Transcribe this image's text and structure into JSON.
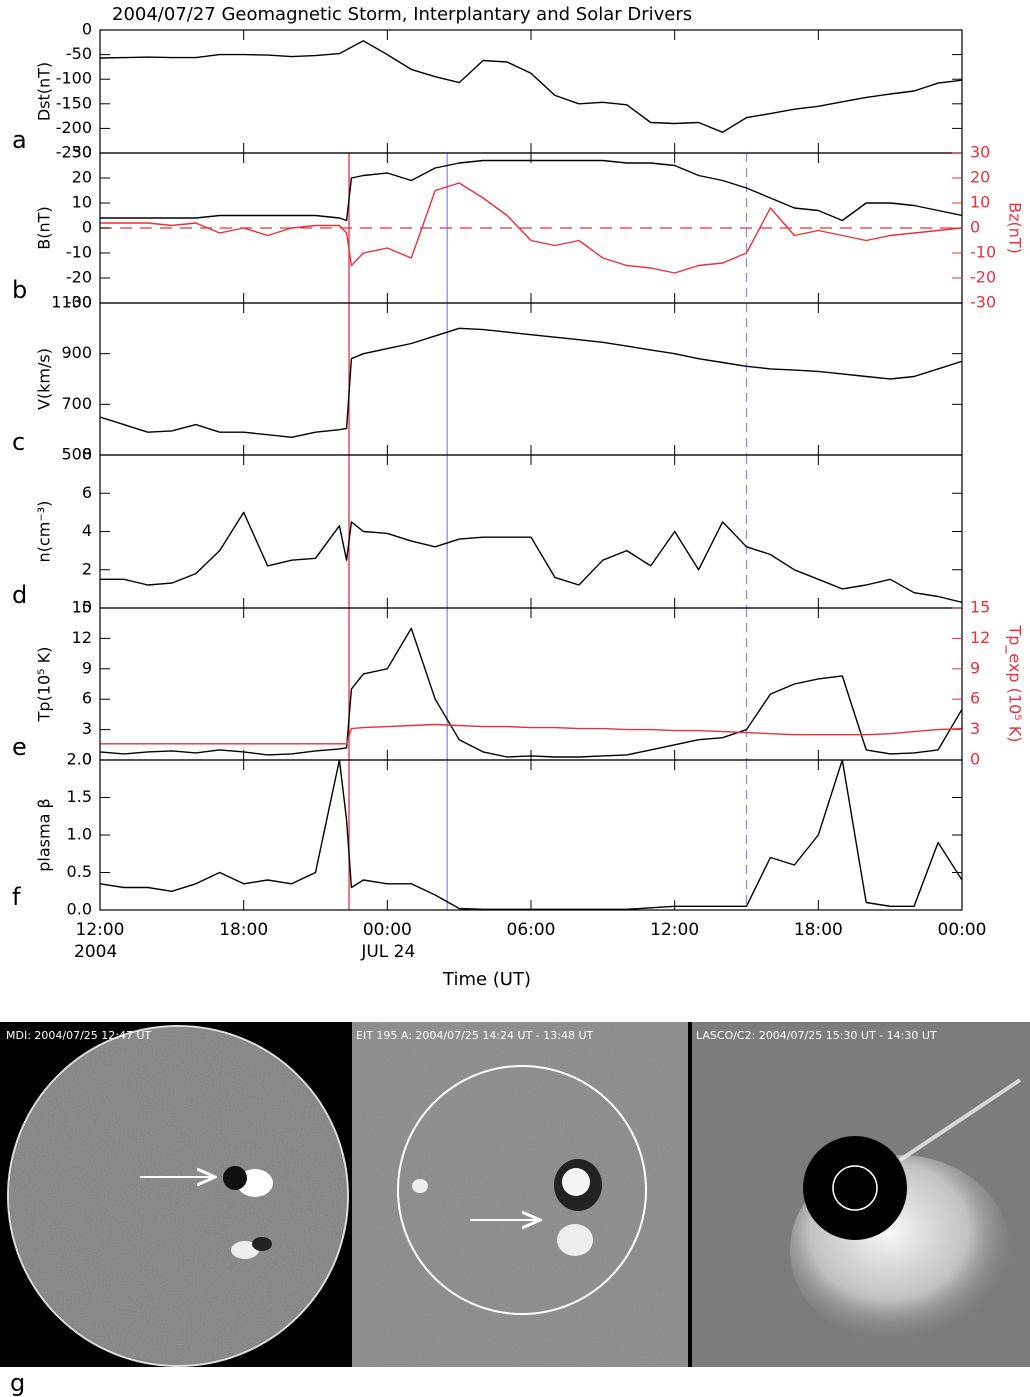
{
  "title": "2004/07/27 Geomagnetic Storm, Interplantary and Solar Drivers",
  "xlabel": "Time (UT)",
  "markers": [
    {
      "x": 10.4,
      "color": "#e8303a",
      "dash": false
    },
    {
      "x": 14.5,
      "color": "#8c8cf0",
      "dash": false
    },
    {
      "x": 27.0,
      "color": "#8c8cf0",
      "dash": true
    }
  ],
  "chart_data": [
    {
      "type": "line",
      "panel": "a",
      "ylabel": "Dst(nT)",
      "color": "#000000",
      "xlim": [
        0,
        36
      ],
      "ylim": [
        -250,
        0
      ],
      "yticks": [
        -250,
        -200,
        -150,
        -100,
        -50,
        0
      ],
      "x": [
        0,
        1,
        2,
        3,
        4,
        5,
        6,
        7,
        8,
        9,
        10,
        11,
        12,
        13,
        14,
        15,
        16,
        17,
        18,
        19,
        20,
        21,
        22,
        23,
        24,
        25,
        26,
        27,
        28,
        29,
        30,
        31,
        32,
        33,
        34,
        35,
        36
      ],
      "values": [
        -57,
        -56,
        -55,
        -56,
        -56,
        -50,
        -50,
        -51,
        -54,
        -52,
        -48,
        -22,
        -50,
        -80,
        -95,
        -107,
        -62,
        -65,
        -88,
        -133,
        -150,
        -147,
        -152,
        -188,
        -190,
        -188,
        -208,
        -178,
        -170,
        -161,
        -155,
        -146,
        -137,
        -130,
        -124,
        -108,
        -102
      ]
    },
    {
      "type": "line",
      "panel": "b",
      "ylabel": "B(nT)",
      "y2label": "Bz(nT)",
      "show_markers": true,
      "xlim": [
        0,
        36
      ],
      "ylim": [
        -30,
        30
      ],
      "yticks": [
        -30,
        -20,
        -10,
        0,
        10,
        20,
        30
      ],
      "y2lim": [
        -30,
        30
      ],
      "y2ticks": [
        -30,
        -20,
        -10,
        0,
        10,
        20,
        30
      ],
      "hline": {
        "value": 0,
        "color": "#e8303a",
        "dash": true
      },
      "x": [
        0,
        1,
        2,
        3,
        4,
        5,
        6,
        7,
        8,
        9,
        10,
        10.3,
        10.5,
        11,
        12,
        13,
        14,
        15,
        16,
        17,
        18,
        19,
        20,
        21,
        22,
        23,
        24,
        25,
        26,
        27,
        28,
        29,
        30,
        31,
        32,
        33,
        34,
        35,
        36
      ],
      "series": [
        {
          "color": "#000000",
          "values": [
            4,
            4,
            4,
            4,
            4,
            5,
            5,
            5,
            5,
            5,
            4,
            3,
            20,
            21,
            22,
            19,
            24,
            26,
            27,
            27,
            27,
            27,
            27,
            27,
            26,
            26,
            25,
            21,
            19,
            16,
            12,
            8,
            7,
            3,
            10,
            10,
            9,
            7,
            5
          ]
        },
        {
          "color": "#e8303a",
          "axis": "y2",
          "values": [
            2,
            2,
            2,
            1,
            2,
            -2,
            0,
            -3,
            0,
            1,
            1,
            -2,
            -15,
            -10,
            -8,
            -12,
            15,
            18,
            12,
            5,
            -5,
            -7,
            -5,
            -12,
            -15,
            -16,
            -18,
            -15,
            -14,
            -10,
            8,
            -3,
            -1,
            -3,
            -5,
            -3,
            -2,
            -1,
            0
          ]
        }
      ]
    },
    {
      "type": "line",
      "panel": "c",
      "ylabel": "V(km/s)",
      "color": "#000000",
      "show_markers": true,
      "xlim": [
        0,
        36
      ],
      "ylim": [
        500,
        1100
      ],
      "yticks": [
        500,
        700,
        900,
        1100
      ],
      "x": [
        0,
        1,
        2,
        3,
        4,
        5,
        6,
        7,
        8,
        9,
        10,
        10.3,
        10.5,
        11,
        12,
        13,
        14,
        15,
        16,
        17,
        18,
        19,
        20,
        21,
        22,
        23,
        24,
        25,
        26,
        27,
        28,
        29,
        30,
        31,
        32,
        33,
        34,
        35,
        36
      ],
      "values": [
        650,
        620,
        590,
        595,
        620,
        590,
        590,
        580,
        570,
        590,
        600,
        605,
        880,
        900,
        920,
        940,
        970,
        1000,
        995,
        985,
        975,
        965,
        955,
        945,
        930,
        915,
        900,
        880,
        865,
        850,
        840,
        835,
        830,
        820,
        810,
        800,
        810,
        840,
        870
      ]
    },
    {
      "type": "line",
      "panel": "d",
      "ylabel": "n(cm⁻³)",
      "color": "#000000",
      "show_markers": true,
      "xlim": [
        0,
        36
      ],
      "ylim": [
        0,
        8
      ],
      "yticks": [
        0,
        2,
        4,
        6,
        8
      ],
      "x": [
        0,
        1,
        2,
        3,
        4,
        5,
        6,
        7,
        8,
        9,
        10,
        10.3,
        10.5,
        11,
        12,
        13,
        14,
        15,
        16,
        17,
        18,
        19,
        20,
        21,
        22,
        23,
        24,
        25,
        26,
        27,
        28,
        29,
        30,
        31,
        32,
        33,
        34,
        35,
        36
      ],
      "values": [
        1.5,
        1.5,
        1.2,
        1.3,
        1.8,
        3.0,
        5.0,
        2.2,
        2.5,
        2.6,
        4.3,
        2.5,
        4.5,
        4.0,
        3.9,
        3.5,
        3.2,
        3.6,
        3.7,
        3.7,
        3.7,
        1.6,
        1.2,
        2.5,
        3.0,
        2.2,
        4.0,
        2.0,
        4.5,
        3.2,
        2.8,
        2.0,
        1.5,
        1.0,
        1.2,
        1.5,
        0.8,
        0.6,
        0.3
      ]
    },
    {
      "type": "line",
      "panel": "e",
      "ylabel": "Tp(10⁵ K)",
      "y2label": "Tp_exp (10⁵ K)",
      "show_markers": true,
      "xlim": [
        0,
        36
      ],
      "ylim": [
        0,
        15
      ],
      "yticks": [
        0,
        3,
        6,
        9,
        12,
        15
      ],
      "y2lim": [
        0,
        15
      ],
      "y2ticks": [
        0,
        3,
        6,
        9,
        12,
        15
      ],
      "x": [
        0,
        1,
        2,
        3,
        4,
        5,
        6,
        7,
        8,
        9,
        10,
        10.3,
        10.5,
        11,
        12,
        13,
        14,
        15,
        16,
        17,
        18,
        19,
        20,
        21,
        22,
        23,
        24,
        25,
        26,
        27,
        28,
        29,
        30,
        31,
        32,
        33,
        34,
        35,
        36
      ],
      "series": [
        {
          "color": "#000000",
          "values": [
            0.8,
            0.6,
            0.8,
            0.9,
            0.7,
            1.0,
            0.8,
            0.5,
            0.6,
            0.9,
            1.1,
            1.2,
            7,
            8.5,
            9,
            13,
            6,
            2,
            0.8,
            0.3,
            0.4,
            0.3,
            0.3,
            0.4,
            0.5,
            1.0,
            1.5,
            2.0,
            2.2,
            3.0,
            6.5,
            7.5,
            8.0,
            8.3,
            1.0,
            0.6,
            0.7,
            1.0,
            5.0
          ]
        },
        {
          "color": "#e8303a",
          "axis": "y2",
          "values": [
            1.6,
            1.6,
            1.6,
            1.6,
            1.6,
            1.6,
            1.6,
            1.6,
            1.6,
            1.6,
            1.6,
            1.6,
            3.1,
            3.2,
            3.3,
            3.4,
            3.5,
            3.4,
            3.3,
            3.3,
            3.2,
            3.2,
            3.1,
            3.1,
            3.0,
            3.0,
            2.9,
            2.9,
            2.8,
            2.7,
            2.6,
            2.5,
            2.5,
            2.5,
            2.5,
            2.6,
            2.8,
            3.0,
            3.1
          ]
        }
      ]
    },
    {
      "type": "line",
      "panel": "f",
      "ylabel": "plasma β",
      "color": "#000000",
      "show_markers": true,
      "xlim": [
        0,
        36
      ],
      "ylim": [
        0,
        2
      ],
      "yticks": [
        {
          "value": 0,
          "label": "0.0"
        },
        0.5,
        {
          "value": 1,
          "label": "1.0"
        },
        1.5,
        {
          "value": 2,
          "label": "2.0"
        }
      ],
      "xticks": [
        {
          "value": 0,
          "label": "12:00"
        },
        {
          "value": 6,
          "label": "18:00"
        },
        {
          "value": 12,
          "label": "00:00"
        },
        {
          "value": 18,
          "label": "06:00"
        },
        {
          "value": 24,
          "label": "12:00"
        },
        {
          "value": 30,
          "label": "18:00"
        },
        {
          "value": 36,
          "label": "00:00"
        }
      ],
      "x_date_labels": [
        {
          "value": 0,
          "label": "2004"
        },
        {
          "value": 12,
          "label": "JUL 24"
        }
      ],
      "x": [
        0,
        1,
        2,
        3,
        4,
        5,
        6,
        7,
        8,
        9,
        10,
        10.3,
        10.5,
        11,
        12,
        13,
        14,
        15,
        16,
        17,
        18,
        19,
        20,
        21,
        22,
        23,
        24,
        25,
        26,
        27,
        28,
        29,
        30,
        31,
        32,
        33,
        34,
        35,
        36
      ],
      "values": [
        0.35,
        0.3,
        0.3,
        0.25,
        0.35,
        0.5,
        0.35,
        0.4,
        0.35,
        0.5,
        2.0,
        1.2,
        0.3,
        0.4,
        0.35,
        0.35,
        0.2,
        0.02,
        0.01,
        0.01,
        0.01,
        0.01,
        0.01,
        0.01,
        0.01,
        0.03,
        0.05,
        0.05,
        0.05,
        0.05,
        0.7,
        0.6,
        1.0,
        2.0,
        0.1,
        0.05,
        0.05,
        0.9,
        0.4
      ]
    }
  ],
  "images": {
    "panel": "g",
    "labels": [
      "MDI: 2004/07/25 12:47 UT",
      "EIT 195 A: 2004/07/25 14:24 UT - 13:48 UT",
      "LASCO/C2: 2004/07/25 15:30 UT - 14:30 UT"
    ]
  }
}
